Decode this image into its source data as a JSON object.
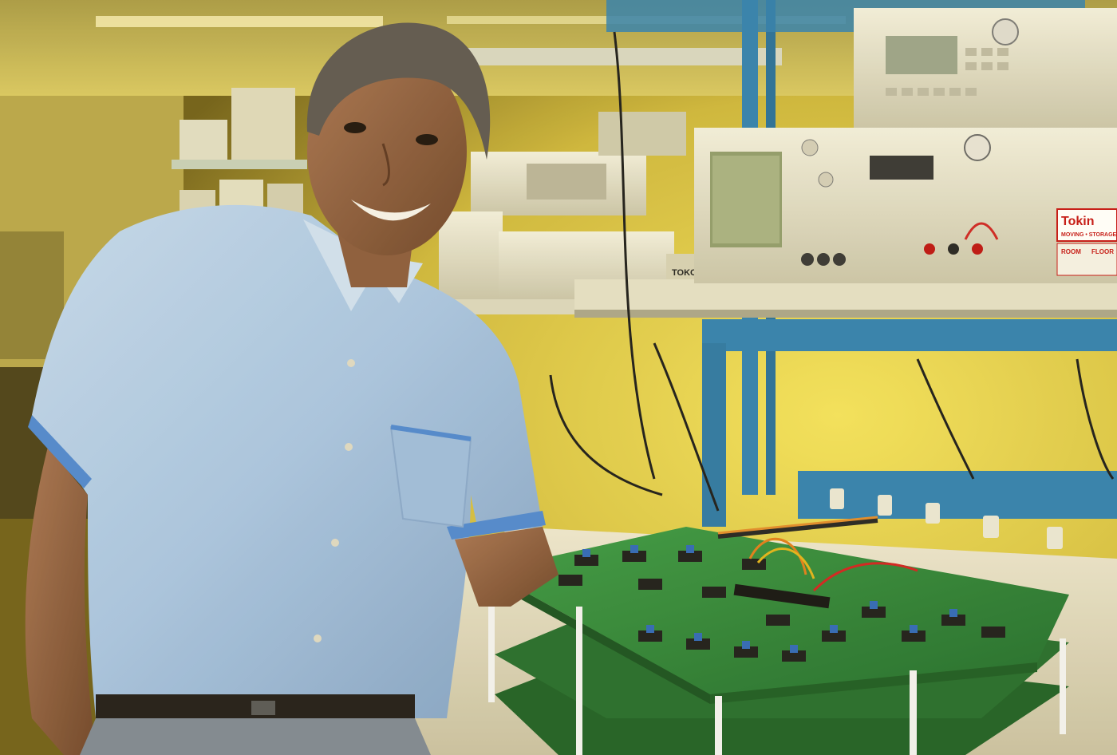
{
  "scene": {
    "subject": "",
    "colors": {
      "wall": "#d9c64a",
      "shelf_frame": "#2f7fb0",
      "shirt": "#aac8e8",
      "pcb": "#2f8a3a",
      "instrument": "#e4e0cc"
    }
  },
  "labels": {
    "brand_tag": "TOKO",
    "mover_sticker": "Tokin",
    "sticker_line1": "MOVING • STORAGE",
    "sticker_line2": "ROOM",
    "sticker_line3": "FLOOR"
  }
}
